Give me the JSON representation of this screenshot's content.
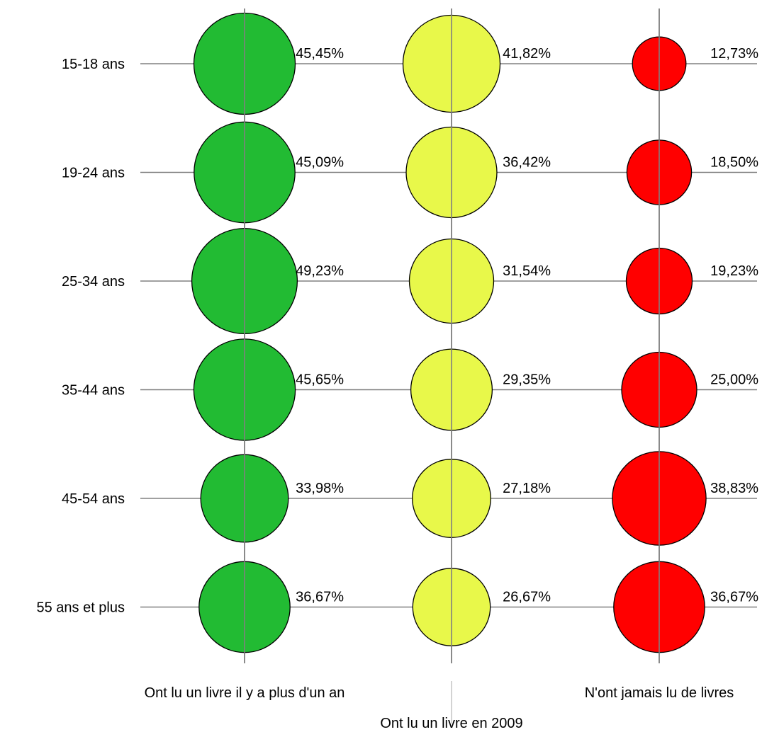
{
  "chart_data": {
    "type": "bubble",
    "title": "",
    "rows": [
      "15-18 ans",
      "19-24 ans",
      "25-34 ans",
      "35-44 ans",
      "45-54 ans",
      "55 ans et plus"
    ],
    "columns": [
      "Ont lu un livre il y a plus d'un an",
      "Ont lu un livre en 2009",
      "N'ont jamais lu de livres"
    ],
    "series": [
      {
        "name": "Ont lu un livre il y a plus d'un an",
        "color": "#22bb33",
        "values": [
          45.45,
          45.09,
          49.23,
          45.65,
          33.98,
          36.67
        ],
        "labels": [
          "45,45%",
          "45,09%",
          "49,23%",
          "45,65%",
          "33,98%",
          "36,67%"
        ]
      },
      {
        "name": "Ont lu un livre en 2009",
        "color": "#e8f84a",
        "values": [
          41.82,
          36.42,
          31.54,
          29.35,
          27.18,
          26.67
        ],
        "labels": [
          "41,82%",
          "36,42%",
          "31,54%",
          "29,35%",
          "27,18%",
          "26,67%"
        ]
      },
      {
        "name": "N'ont jamais lu de livres",
        "color": "#ff0000",
        "values": [
          12.73,
          18.5,
          19.23,
          25.0,
          38.83,
          36.67
        ],
        "labels": [
          "12,73%",
          "18,50%",
          "19,23%",
          "25,00%",
          "38,83%",
          "36,67%"
        ]
      }
    ],
    "grid": true,
    "legend": "none"
  }
}
